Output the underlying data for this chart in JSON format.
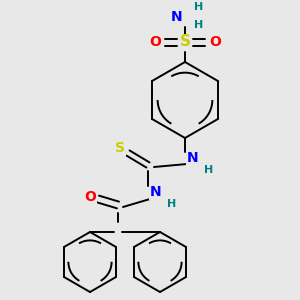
{
  "background_color": "#e8e8e8",
  "bond_color": "#000000",
  "atom_colors": {
    "S": "#cccc00",
    "O": "#ff0000",
    "N": "#0000ff",
    "H": "#008080",
    "C": "#000000"
  },
  "font_size": 10,
  "figsize": [
    3.0,
    3.0
  ],
  "dpi": 100
}
